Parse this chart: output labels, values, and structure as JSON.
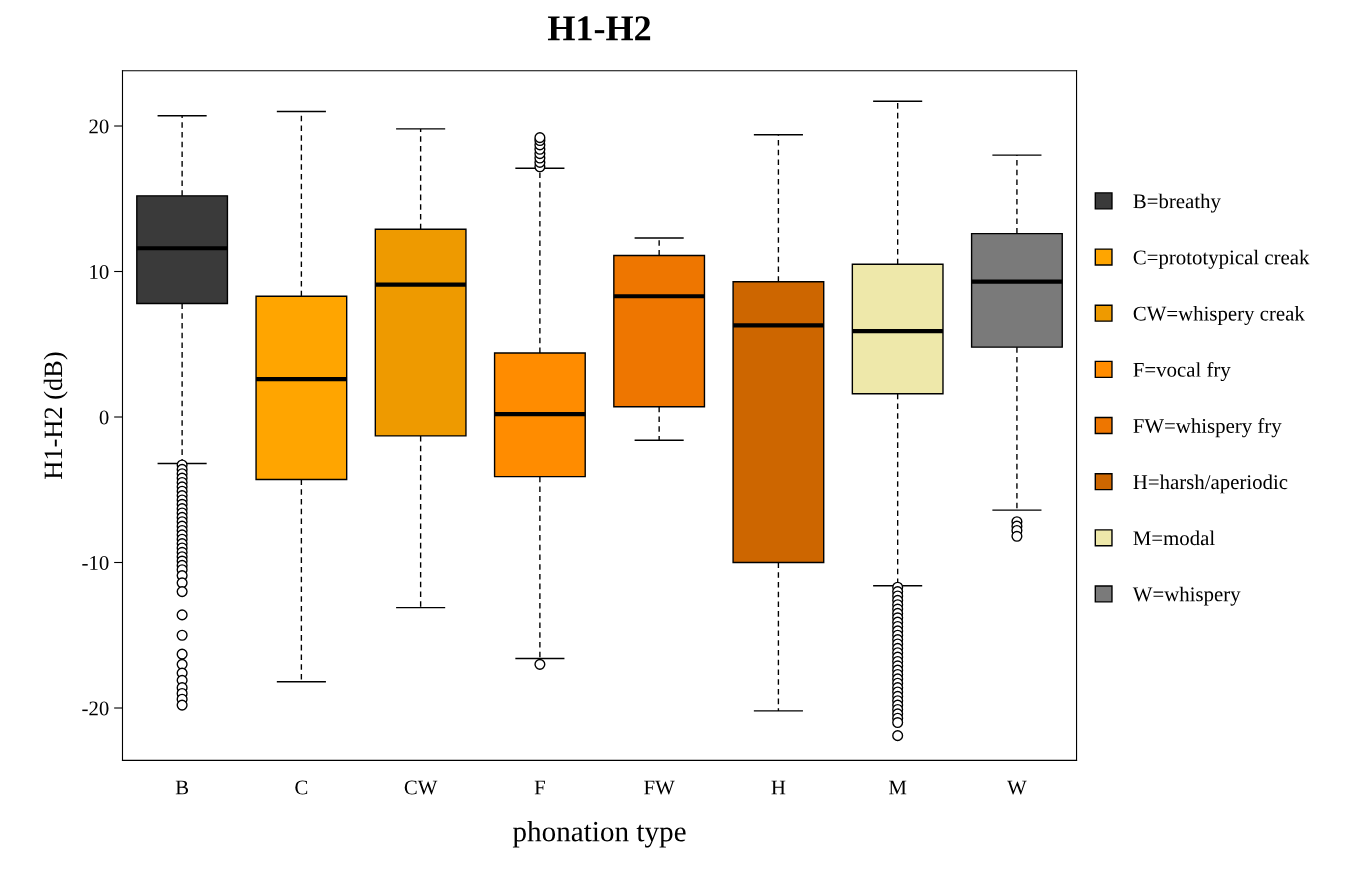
{
  "chart_data": {
    "type": "box",
    "title": "H1-H2",
    "xlabel": "phonation type",
    "ylabel": "H1-H2 (dB)",
    "categories": [
      "B",
      "C",
      "CW",
      "F",
      "FW",
      "H",
      "M",
      "W"
    ],
    "ylim": [
      -23.6,
      23.8
    ],
    "yticks": [
      -20,
      -10,
      0,
      10,
      20
    ],
    "grid": false,
    "legend": "right",
    "marker": "circle",
    "series": [
      {
        "name": "B=breathy",
        "color": "#3a3a3a",
        "boxes": [
          {
            "low": -3.2,
            "q1": 7.8,
            "median": 11.6,
            "q3": 15.2,
            "high": 20.7,
            "outliers": [
              -3.3,
              -3.6,
              -3.9,
              -4.2,
              -4.5,
              -4.8,
              -5.1,
              -5.4,
              -5.7,
              -6.0,
              -6.3,
              -6.6,
              -6.9,
              -7.2,
              -7.5,
              -7.8,
              -8.1,
              -8.4,
              -8.7,
              -9.0,
              -9.3,
              -9.6,
              -9.9,
              -10.2,
              -10.5,
              -10.9,
              -11.4,
              -12.0,
              -13.6,
              -15.0,
              -16.3,
              -17.0,
              -17.6,
              -18.1,
              -18.6,
              -19.0,
              -19.4,
              -19.8
            ]
          },
          null,
          null,
          null,
          null,
          null,
          null,
          null
        ]
      },
      {
        "name": "C=prototypical creak",
        "color": "#ffa500",
        "boxes": [
          null,
          {
            "low": -18.2,
            "q1": -4.3,
            "median": 2.6,
            "q3": 8.3,
            "high": 21.0
          },
          null,
          null,
          null,
          null,
          null,
          null
        ]
      },
      {
        "name": "CW=whispery creak",
        "color": "#ee9a00",
        "boxes": [
          null,
          null,
          {
            "low": -13.1,
            "q1": -1.3,
            "median": 9.1,
            "q3": 12.9,
            "high": 19.8
          },
          null,
          null,
          null,
          null,
          null
        ]
      },
      {
        "name": "F=vocal fry",
        "color": "#ff8c00",
        "boxes": [
          null,
          null,
          null,
          {
            "low": -16.6,
            "q1": -4.1,
            "median": 0.2,
            "q3": 4.4,
            "high": 17.1,
            "outliers": [
              17.2,
              17.5,
              17.8,
              18.1,
              18.4,
              18.7,
              19.0,
              19.2,
              -17.0
            ]
          },
          null,
          null,
          null,
          null
        ]
      },
      {
        "name": "FW=whispery fry",
        "color": "#ee7600",
        "boxes": [
          null,
          null,
          null,
          null,
          {
            "low": -1.6,
            "q1": 0.7,
            "median": 8.3,
            "q3": 11.1,
            "high": 12.3
          },
          null,
          null,
          null
        ]
      },
      {
        "name": "H=harsh/aperiodic",
        "color": "#cd6600",
        "boxes": [
          null,
          null,
          null,
          null,
          null,
          {
            "low": -20.2,
            "q1": -10.0,
            "median": 6.3,
            "q3": 9.3,
            "high": 19.4
          },
          null,
          null
        ]
      },
      {
        "name": "M=modal",
        "color": "#eee8aa",
        "boxes": [
          null,
          null,
          null,
          null,
          null,
          null,
          {
            "low": -11.6,
            "q1": 1.6,
            "median": 5.9,
            "q3": 10.5,
            "high": 21.7,
            "outliers": [
              -11.7,
              -12.0,
              -12.3,
              -12.6,
              -12.9,
              -13.2,
              -13.5,
              -13.8,
              -14.1,
              -14.4,
              -14.7,
              -15.0,
              -15.3,
              -15.6,
              -15.9,
              -16.2,
              -16.5,
              -16.8,
              -17.1,
              -17.4,
              -17.7,
              -18.0,
              -18.3,
              -18.6,
              -18.9,
              -19.2,
              -19.5,
              -19.8,
              -20.1,
              -20.4,
              -20.7,
              -21.0,
              -21.9
            ]
          },
          null
        ]
      },
      {
        "name": "W=whispery",
        "color": "#7a7a7a",
        "boxes": [
          null,
          null,
          null,
          null,
          null,
          null,
          null,
          {
            "low": -6.4,
            "q1": 4.8,
            "median": 9.3,
            "q3": 12.6,
            "high": 18.0,
            "outliers": [
              -7.2,
              -7.5,
              -7.8,
              -8.2
            ]
          }
        ]
      }
    ]
  }
}
